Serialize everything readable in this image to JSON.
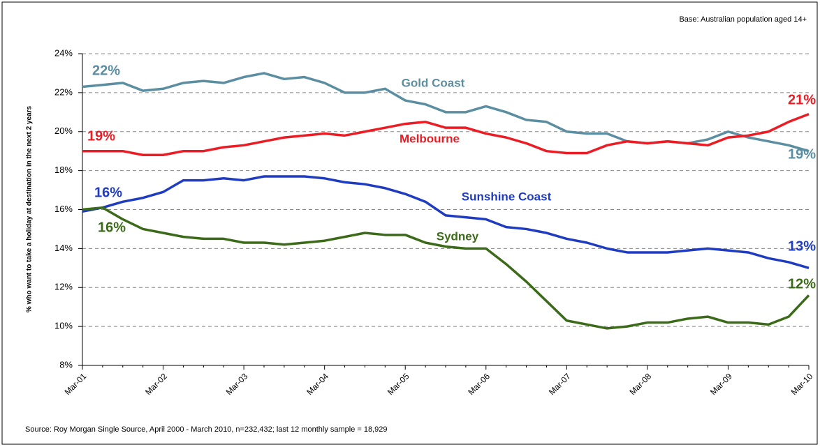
{
  "chart_data": {
    "type": "line",
    "note": "Base: Australian population aged 14+",
    "ylabel": "% who want to take a holiday at destination in the next 2 years",
    "source": "Source: Roy Morgan Single Source, April 2000 - March 2010, n=232,432; last 12 monthly sample = 18,929",
    "categories": [
      "Mar-01",
      null,
      null,
      null,
      "Mar-02",
      null,
      null,
      null,
      "Mar-03",
      null,
      null,
      null,
      "Mar-04",
      null,
      null,
      null,
      "Mar-05",
      null,
      null,
      null,
      "Mar-06",
      null,
      null,
      null,
      "Mar-07",
      null,
      null,
      null,
      "Mar-08",
      null,
      null,
      null,
      "Mar-09",
      null,
      null,
      null,
      "Mar-10"
    ],
    "ylim": [
      8,
      24
    ],
    "yticks": [
      {
        "value": 8,
        "label": "8%"
      },
      {
        "value": 10,
        "label": "10%"
      },
      {
        "value": 12,
        "label": "12%"
      },
      {
        "value": 14,
        "label": "14%"
      },
      {
        "value": 16,
        "label": "16%"
      },
      {
        "value": 18,
        "label": "18%"
      },
      {
        "value": 20,
        "label": "20%"
      },
      {
        "value": 22,
        "label": "22%"
      },
      {
        "value": 24,
        "label": "24%"
      }
    ],
    "grid": true,
    "series": [
      {
        "name": "Gold Coast",
        "color": "#5b8ea1",
        "values": [
          22.3,
          22.4,
          22.5,
          22.1,
          22.2,
          22.5,
          22.6,
          22.5,
          22.8,
          23.0,
          22.7,
          22.8,
          22.5,
          22.0,
          22.0,
          22.2,
          21.6,
          21.4,
          21.0,
          21.0,
          21.3,
          21.0,
          20.6,
          20.5,
          20.0,
          19.9,
          19.9,
          19.5,
          19.4,
          19.5,
          19.4,
          19.6,
          20.0,
          19.7,
          19.5,
          19.3,
          19.0
        ],
        "value_labels": [
          "22%",
          null,
          null,
          null,
          null,
          null,
          null,
          null,
          null,
          null,
          null,
          null,
          null,
          null,
          null,
          null,
          null,
          null,
          null,
          null,
          null,
          null,
          null,
          null,
          null,
          null,
          null,
          null,
          null,
          null,
          null,
          null,
          null,
          null,
          null,
          null,
          "19%"
        ]
      },
      {
        "name": "Melbourne",
        "color": "#ec1c24",
        "values": [
          19.0,
          19.0,
          19.0,
          18.8,
          18.8,
          19.0,
          19.0,
          19.2,
          19.3,
          19.5,
          19.7,
          19.8,
          19.9,
          19.8,
          20.0,
          20.2,
          20.4,
          20.5,
          20.2,
          20.2,
          19.9,
          19.7,
          19.4,
          19.0,
          18.9,
          18.9,
          19.3,
          19.5,
          19.4,
          19.5,
          19.4,
          19.3,
          19.7,
          19.8,
          20.0,
          20.5,
          20.9
        ],
        "value_labels": [
          "19%",
          null,
          null,
          null,
          null,
          null,
          null,
          null,
          null,
          null,
          null,
          null,
          null,
          null,
          null,
          null,
          null,
          null,
          null,
          null,
          null,
          null,
          null,
          null,
          null,
          null,
          null,
          null,
          null,
          null,
          null,
          null,
          null,
          null,
          null,
          null,
          "21%"
        ]
      },
      {
        "name": "Sunshine Coast",
        "color": "#1f3cc0",
        "values": [
          15.9,
          16.1,
          16.4,
          16.6,
          16.9,
          17.5,
          17.5,
          17.6,
          17.5,
          17.7,
          17.7,
          17.7,
          17.6,
          17.4,
          17.3,
          17.1,
          16.8,
          16.4,
          15.7,
          15.6,
          15.5,
          15.1,
          15.0,
          14.8,
          14.5,
          14.3,
          14.0,
          13.8,
          13.8,
          13.8,
          13.9,
          14.0,
          13.9,
          13.8,
          13.5,
          13.3,
          13.0
        ],
        "value_labels": [
          "16%",
          null,
          null,
          null,
          null,
          null,
          null,
          null,
          null,
          null,
          null,
          null,
          null,
          null,
          null,
          null,
          null,
          null,
          null,
          null,
          null,
          null,
          null,
          null,
          null,
          null,
          null,
          null,
          null,
          null,
          null,
          null,
          null,
          null,
          null,
          null,
          "13%"
        ]
      },
      {
        "name": "Sydney",
        "color": "#3b6a19",
        "values": [
          16.0,
          16.1,
          15.5,
          15.0,
          14.8,
          14.6,
          14.5,
          14.5,
          14.3,
          14.3,
          14.2,
          14.3,
          14.4,
          14.6,
          14.8,
          14.7,
          14.7,
          14.3,
          14.1,
          14.0,
          14.0,
          13.2,
          12.3,
          11.3,
          10.3,
          10.1,
          9.9,
          10.0,
          10.2,
          10.2,
          10.4,
          10.5,
          10.2,
          10.2,
          10.1,
          10.5,
          11.6
        ],
        "value_labels": [
          "16%",
          null,
          null,
          null,
          null,
          null,
          null,
          null,
          null,
          null,
          null,
          null,
          null,
          null,
          null,
          null,
          null,
          null,
          null,
          null,
          null,
          null,
          null,
          null,
          null,
          null,
          null,
          null,
          null,
          null,
          null,
          null,
          null,
          null,
          null,
          null,
          "12%"
        ]
      }
    ]
  }
}
